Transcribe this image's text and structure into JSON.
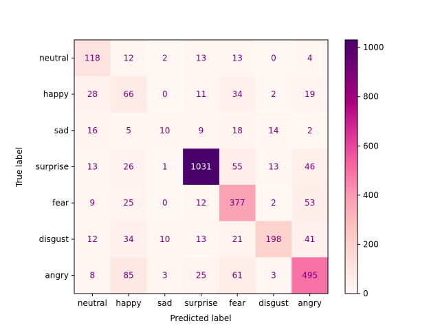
{
  "chart_data": {
    "type": "heatmap",
    "title": "",
    "xlabel": "Predicted label",
    "ylabel": "True label",
    "x_categories": [
      "neutral",
      "happy",
      "sad",
      "surprise",
      "fear",
      "disgust",
      "angry"
    ],
    "y_categories": [
      "neutral",
      "happy",
      "sad",
      "surprise",
      "fear",
      "disgust",
      "angry"
    ],
    "values": [
      [
        118,
        12,
        2,
        13,
        13,
        0,
        4
      ],
      [
        28,
        66,
        0,
        11,
        34,
        2,
        19
      ],
      [
        16,
        5,
        10,
        9,
        18,
        14,
        2
      ],
      [
        13,
        26,
        1,
        1031,
        55,
        13,
        46
      ],
      [
        9,
        25,
        0,
        12,
        377,
        2,
        53
      ],
      [
        12,
        34,
        10,
        13,
        21,
        198,
        41
      ],
      [
        8,
        85,
        3,
        25,
        61,
        3,
        495
      ]
    ],
    "colormap": "RdPu",
    "value_range": [
      0,
      1031
    ],
    "colorbar_ticks": [
      "0",
      "200",
      "400",
      "600",
      "800",
      "1000"
    ],
    "colorbar_tick_values": [
      0,
      200,
      400,
      600,
      800,
      1000
    ],
    "cell_label_color": "#800080",
    "cell_label_color_dark": "#ffffff",
    "grid": false,
    "legend": "colorbar-right"
  }
}
